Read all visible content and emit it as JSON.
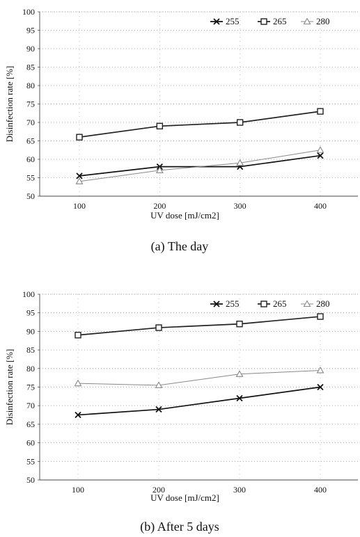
{
  "chart_data": [
    {
      "type": "line",
      "caption": "(a) The day",
      "xlabel": "UV dose [mJ/cm2]",
      "ylabel": "Disinfection rate [%]",
      "x": [
        100,
        200,
        300,
        400
      ],
      "xticks": [
        "100",
        "200",
        "300",
        "400"
      ],
      "ylim": [
        50,
        100
      ],
      "yticks": [
        "50",
        "55",
        "60",
        "65",
        "70",
        "75",
        "80",
        "85",
        "90",
        "95",
        "100"
      ],
      "grid": true,
      "legend_position": "top-right",
      "series": [
        {
          "name": "255",
          "values": [
            55.5,
            58,
            58,
            61
          ],
          "marker": "x",
          "color": "#111111"
        },
        {
          "name": "265",
          "values": [
            66,
            69,
            70,
            73
          ],
          "marker": "square",
          "color": "#222222"
        },
        {
          "name": "280",
          "values": [
            54,
            57,
            59,
            62.5
          ],
          "marker": "triangle",
          "color": "#888888"
        }
      ]
    },
    {
      "type": "line",
      "caption": "(b) After 5 days",
      "xlabel": "UV dose [mJ/cm2]",
      "ylabel": "Disinfection rate [%]",
      "x": [
        100,
        200,
        300,
        400
      ],
      "xticks": [
        "100",
        "200",
        "300",
        "400"
      ],
      "ylim": [
        50,
        100
      ],
      "yticks": [
        "50",
        "55",
        "60",
        "65",
        "70",
        "75",
        "80",
        "85",
        "90",
        "95",
        "100"
      ],
      "grid": true,
      "legend_position": "top-right",
      "series": [
        {
          "name": "255",
          "values": [
            67.5,
            69,
            72,
            75
          ],
          "marker": "x",
          "color": "#111111"
        },
        {
          "name": "265",
          "values": [
            89,
            91,
            92,
            94
          ],
          "marker": "square",
          "color": "#222222"
        },
        {
          "name": "280",
          "values": [
            76,
            75.5,
            78.5,
            79.5
          ],
          "marker": "triangle",
          "color": "#888888"
        }
      ]
    }
  ]
}
